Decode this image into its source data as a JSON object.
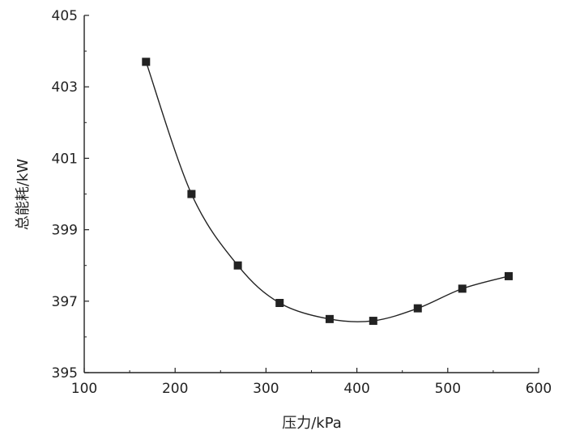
{
  "chart_data": {
    "type": "scatter",
    "title": "",
    "xlabel": "压力/kPa",
    "ylabel": "总能耗/kW",
    "xlim": [
      100,
      600
    ],
    "ylim": [
      395,
      405
    ],
    "xticks": [
      100,
      200,
      300,
      400,
      500,
      600
    ],
    "yticks": [
      395,
      397,
      399,
      401,
      403,
      405
    ],
    "xtick_labels": [
      "100",
      "200",
      "300",
      "400",
      "500",
      "600"
    ],
    "ytick_labels": [
      "395",
      "397",
      "399",
      "401",
      "403",
      "405"
    ],
    "grid": false,
    "legend": "none",
    "series": [
      {
        "x": [
          168,
          218,
          269,
          315,
          370,
          418,
          467,
          516,
          567
        ],
        "y": [
          403.7,
          400.0,
          398.0,
          396.95,
          396.5,
          396.45,
          396.8,
          397.35,
          397.7
        ],
        "marker": "square",
        "line": "smooth"
      }
    ],
    "color": "#222222"
  }
}
